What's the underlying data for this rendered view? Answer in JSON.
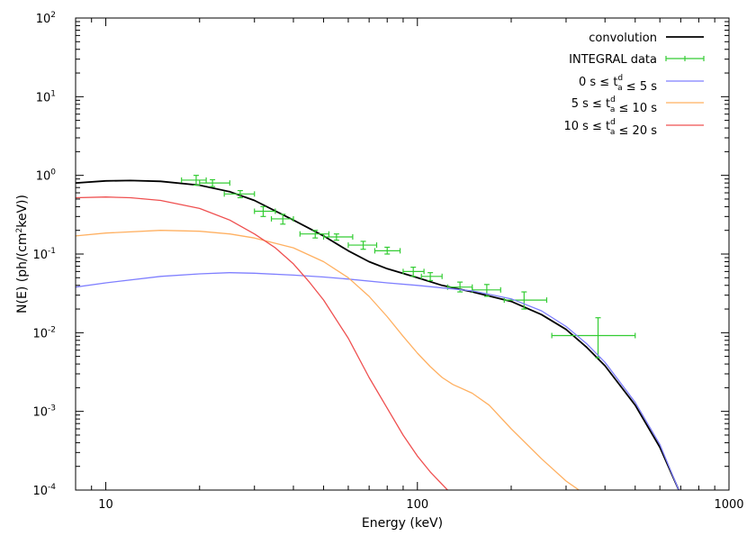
{
  "chart_data": {
    "type": "line",
    "title": "",
    "xlabel": "Energy (keV)",
    "ylabel_parts": [
      "N(E) (ph/(cm",
      "2",
      "keV))"
    ],
    "xscale": "log",
    "yscale": "log",
    "xlim": [
      8,
      1000
    ],
    "ylim": [
      0.0001,
      100
    ],
    "legend_position": "top-right",
    "x_ticks": [
      {
        "value": 10,
        "label": "10"
      },
      {
        "value": 100,
        "label": "100"
      },
      {
        "value": 1000,
        "label": "1000"
      }
    ],
    "y_ticks": [
      {
        "value": 0.0001,
        "mantissa": "10",
        "exponent": "-4"
      },
      {
        "value": 0.001,
        "mantissa": "10",
        "exponent": "-3"
      },
      {
        "value": 0.01,
        "mantissa": "10",
        "exponent": "-2"
      },
      {
        "value": 0.1,
        "mantissa": "10",
        "exponent": "-1"
      },
      {
        "value": 1,
        "mantissa": "10",
        "exponent": "0"
      },
      {
        "value": 10,
        "mantissa": "10",
        "exponent": "1"
      },
      {
        "value": 100,
        "mantissa": "10",
        "exponent": "2"
      }
    ],
    "series": [
      {
        "name": "convolution",
        "label_parts": [
          {
            "t": "convolution"
          }
        ],
        "color": "#000000",
        "kind": "line",
        "points": [
          [
            8,
            0.8
          ],
          [
            10,
            0.85
          ],
          [
            12,
            0.86
          ],
          [
            15,
            0.84
          ],
          [
            20,
            0.75
          ],
          [
            25,
            0.62
          ],
          [
            30,
            0.48
          ],
          [
            40,
            0.27
          ],
          [
            50,
            0.17
          ],
          [
            60,
            0.11
          ],
          [
            70,
            0.08
          ],
          [
            80,
            0.065
          ],
          [
            100,
            0.05
          ],
          [
            120,
            0.04
          ],
          [
            150,
            0.033
          ],
          [
            200,
            0.025
          ],
          [
            250,
            0.017
          ],
          [
            300,
            0.011
          ],
          [
            350,
            0.0065
          ],
          [
            400,
            0.0038
          ],
          [
            500,
            0.0012
          ],
          [
            600,
            0.00035
          ],
          [
            690,
            0.0001
          ]
        ]
      },
      {
        "name": "INTEGRAL data",
        "label_parts": [
          {
            "t": "INTEGRAL data"
          }
        ],
        "color": "#33cc33",
        "kind": "errorbars",
        "points": [
          {
            "x": 19.5,
            "xlo": 17.5,
            "xhi": 21,
            "y": 0.87,
            "ylo": 0.75,
            "yhi": 1.0
          },
          {
            "x": 22,
            "xlo": 20,
            "xhi": 25,
            "y": 0.8,
            "ylo": 0.72,
            "yhi": 0.88
          },
          {
            "x": 27,
            "xlo": 24,
            "xhi": 30,
            "y": 0.58,
            "ylo": 0.52,
            "yhi": 0.64
          },
          {
            "x": 32,
            "xlo": 30,
            "xhi": 35,
            "y": 0.35,
            "ylo": 0.3,
            "yhi": 0.4
          },
          {
            "x": 37,
            "xlo": 34,
            "xhi": 40,
            "y": 0.28,
            "ylo": 0.24,
            "yhi": 0.32
          },
          {
            "x": 47,
            "xlo": 42,
            "xhi": 52,
            "y": 0.18,
            "ylo": 0.16,
            "yhi": 0.2
          },
          {
            "x": 55,
            "xlo": 50,
            "xhi": 62,
            "y": 0.165,
            "ylo": 0.15,
            "yhi": 0.18
          },
          {
            "x": 67,
            "xlo": 60,
            "xhi": 74,
            "y": 0.13,
            "ylo": 0.115,
            "yhi": 0.145
          },
          {
            "x": 80,
            "xlo": 73,
            "xhi": 88,
            "y": 0.11,
            "ylo": 0.1,
            "yhi": 0.122
          },
          {
            "x": 97,
            "xlo": 90,
            "xhi": 105,
            "y": 0.06,
            "ylo": 0.052,
            "yhi": 0.068
          },
          {
            "x": 110,
            "xlo": 103,
            "xhi": 120,
            "y": 0.052,
            "ylo": 0.046,
            "yhi": 0.058
          },
          {
            "x": 137,
            "xlo": 125,
            "xhi": 150,
            "y": 0.038,
            "ylo": 0.033,
            "yhi": 0.044
          },
          {
            "x": 167,
            "xlo": 150,
            "xhi": 185,
            "y": 0.035,
            "ylo": 0.029,
            "yhi": 0.041
          },
          {
            "x": 220,
            "xlo": 190,
            "xhi": 260,
            "y": 0.026,
            "ylo": 0.02,
            "yhi": 0.033
          },
          {
            "x": 380,
            "xlo": 270,
            "xhi": 500,
            "y": 0.0092,
            "ylo": 0.0048,
            "yhi": 0.0155
          }
        ]
      },
      {
        "name": "0 s ≤ t_a^d ≤ 5 s",
        "label_parts": [
          {
            "t": "0 s ≤ t"
          },
          {
            "sup": "d",
            "sub": "a"
          },
          {
            "t": " ≤ 5 s"
          }
        ],
        "color": "#7f7fff",
        "kind": "line",
        "points": [
          [
            8,
            0.038
          ],
          [
            10,
            0.043
          ],
          [
            15,
            0.052
          ],
          [
            20,
            0.056
          ],
          [
            25,
            0.058
          ],
          [
            30,
            0.057
          ],
          [
            40,
            0.054
          ],
          [
            50,
            0.051
          ],
          [
            60,
            0.048
          ],
          [
            80,
            0.043
          ],
          [
            100,
            0.04
          ],
          [
            150,
            0.034
          ],
          [
            200,
            0.027
          ],
          [
            250,
            0.019
          ],
          [
            300,
            0.012
          ],
          [
            350,
            0.0072
          ],
          [
            400,
            0.0042
          ],
          [
            500,
            0.0013
          ],
          [
            600,
            0.00038
          ],
          [
            690,
            0.0001
          ]
        ]
      },
      {
        "name": "5 s ≤ t_a^d ≤ 10 s",
        "label_parts": [
          {
            "t": "5 s ≤ t"
          },
          {
            "sup": "d",
            "sub": "a"
          },
          {
            "t": " ≤ 10 s"
          }
        ],
        "color": "#ffb061",
        "kind": "line",
        "points": [
          [
            8,
            0.17
          ],
          [
            10,
            0.185
          ],
          [
            15,
            0.2
          ],
          [
            20,
            0.195
          ],
          [
            25,
            0.18
          ],
          [
            30,
            0.16
          ],
          [
            40,
            0.12
          ],
          [
            50,
            0.08
          ],
          [
            60,
            0.05
          ],
          [
            70,
            0.029
          ],
          [
            80,
            0.016
          ],
          [
            90,
            0.009
          ],
          [
            100,
            0.0055
          ],
          [
            110,
            0.0037
          ],
          [
            120,
            0.0027
          ],
          [
            130,
            0.0022
          ],
          [
            150,
            0.0017
          ],
          [
            170,
            0.0012
          ],
          [
            200,
            0.0006
          ],
          [
            250,
            0.00025
          ],
          [
            300,
            0.00013
          ],
          [
            330,
            0.0001
          ]
        ]
      },
      {
        "name": "10 s ≤ t_a^d ≤ 20 s",
        "label_parts": [
          {
            "t": "10 s ≤ t"
          },
          {
            "sup": "d",
            "sub": "a"
          },
          {
            "t": " ≤ 20 s"
          }
        ],
        "color": "#ef5050",
        "kind": "line",
        "points": [
          [
            8,
            0.52
          ],
          [
            10,
            0.53
          ],
          [
            12,
            0.52
          ],
          [
            15,
            0.48
          ],
          [
            20,
            0.38
          ],
          [
            25,
            0.27
          ],
          [
            30,
            0.18
          ],
          [
            35,
            0.12
          ],
          [
            40,
            0.075
          ],
          [
            45,
            0.044
          ],
          [
            50,
            0.026
          ],
          [
            60,
            0.0085
          ],
          [
            70,
            0.0027
          ],
          [
            80,
            0.0011
          ],
          [
            90,
            0.0005
          ],
          [
            100,
            0.00027
          ],
          [
            110,
            0.00017
          ],
          [
            125,
            0.0001
          ]
        ]
      }
    ]
  }
}
